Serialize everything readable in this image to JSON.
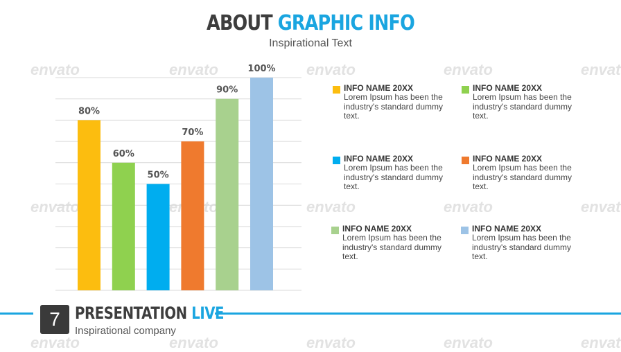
{
  "header": {
    "title_part1": "ABOUT",
    "title_part2": "GRAPHIC INFO",
    "subtitle": "Inspirational Text"
  },
  "watermark": "envato",
  "chart_data": {
    "type": "bar",
    "categories": [
      "",
      "",
      "",
      "",
      "",
      ""
    ],
    "values": [
      80,
      60,
      50,
      70,
      90,
      100
    ],
    "data_labels": [
      "80%",
      "60%",
      "50%",
      "70%",
      "90%",
      "100%"
    ],
    "colors": [
      "#fcbd0f",
      "#8fd14f",
      "#00adef",
      "#ef7a2e",
      "#a8d18e",
      "#9dc3e6"
    ],
    "title": "",
    "xlabel": "",
    "ylabel": "",
    "ylim": [
      0,
      100
    ],
    "grid": true
  },
  "legend": [
    {
      "name": "INFO NAME 20XX",
      "desc": "Lorem Ipsum has been the industry's standard dummy text.",
      "color": "#fcbd0f"
    },
    {
      "name": "INFO NAME 20XX",
      "desc": "Lorem Ipsum has been the industry's standard dummy text.",
      "color": "#8fd14f"
    },
    {
      "name": "INFO NAME 20XX",
      "desc": "Lorem Ipsum has been the industry's standard dummy text.",
      "color": "#00adef"
    },
    {
      "name": "INFO NAME 20XX",
      "desc": "Lorem Ipsum has been the industry's standard dummy text.",
      "color": "#ef7a2e"
    },
    {
      "name": "INFO NAME 20XX",
      "desc": "Lorem Ipsum has been the industry's standard dummy text.",
      "color": "#a8d18e"
    },
    {
      "name": "INFO NAME 20XX",
      "desc": "Lorem Ipsum has been the industry's standard dummy text.",
      "color": "#9dc3e6"
    }
  ],
  "footer": {
    "page_number": "7",
    "title_part1": "PRESENTATION",
    "title_part2": "LIVE",
    "subtitle": "Inspirational company"
  }
}
